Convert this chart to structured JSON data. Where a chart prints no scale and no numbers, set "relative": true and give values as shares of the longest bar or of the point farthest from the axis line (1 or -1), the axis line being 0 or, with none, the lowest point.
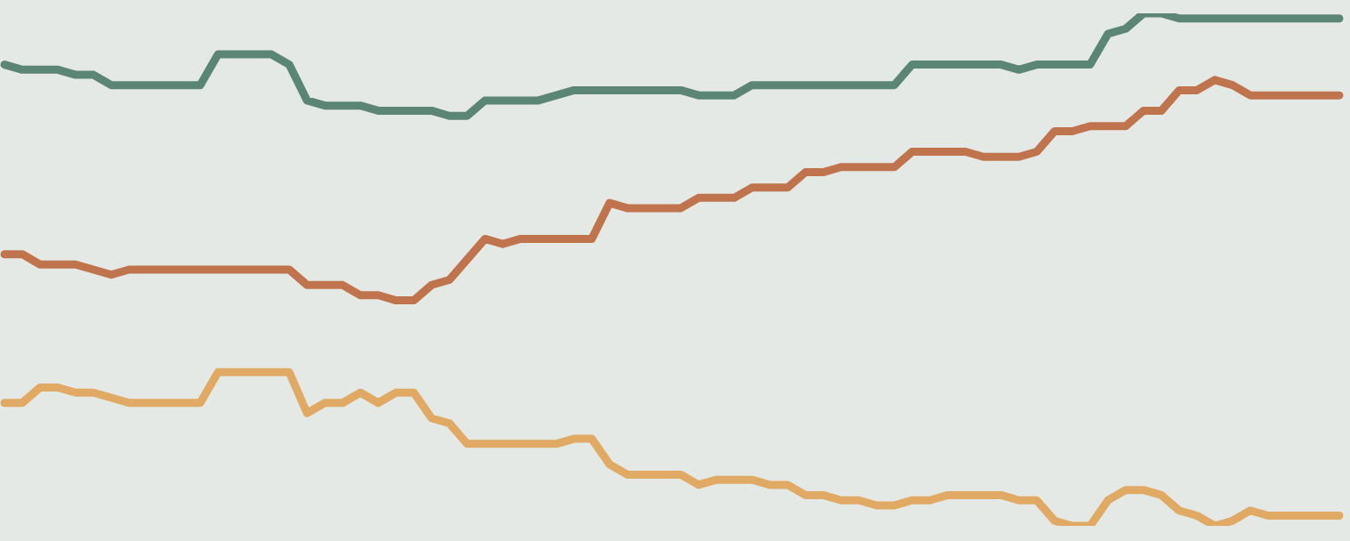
{
  "chart_data": {
    "type": "line",
    "relative": true,
    "categories": [
      null,
      null,
      null,
      null,
      null,
      null,
      null,
      null,
      null,
      null,
      null,
      null,
      null,
      null,
      null,
      null,
      null,
      null,
      null,
      null,
      null,
      null,
      null,
      null,
      null,
      null,
      null,
      null,
      null,
      null,
      null,
      null,
      null,
      null,
      null,
      null,
      null,
      null,
      null,
      null,
      null,
      null,
      null,
      null,
      null,
      null,
      null,
      null,
      null,
      null,
      null,
      null,
      null,
      null,
      null,
      null,
      null,
      null,
      null,
      null,
      null,
      null,
      null,
      null,
      null,
      null,
      null,
      null,
      null,
      null,
      null,
      null,
      null,
      null,
      null,
      null
    ],
    "series": [
      {
        "color": "#5b8575",
        "values": [
          0.9,
          0.89,
          0.89,
          0.89,
          0.88,
          0.88,
          0.86,
          0.86,
          0.86,
          0.86,
          0.86,
          0.86,
          0.92,
          0.92,
          0.92,
          0.92,
          0.9,
          0.83,
          0.82,
          0.82,
          0.82,
          0.81,
          0.81,
          0.81,
          0.81,
          0.8,
          0.8,
          0.83,
          0.83,
          0.83,
          0.83,
          0.84,
          0.85,
          0.85,
          0.85,
          0.85,
          0.85,
          0.85,
          0.85,
          0.84,
          0.84,
          0.84,
          0.86,
          0.86,
          0.86,
          0.86,
          0.86,
          0.86,
          0.86,
          0.86,
          0.86,
          0.9,
          0.9,
          0.9,
          0.9,
          0.9,
          0.9,
          0.89,
          0.9,
          0.9,
          0.9,
          0.9,
          0.96,
          0.97,
          1.0,
          1.0,
          0.99,
          0.99,
          0.99,
          0.99,
          0.99,
          0.99,
          0.99,
          0.99,
          0.99,
          0.99
        ]
      },
      {
        "color": "#c0744e",
        "values": [
          0.53,
          0.53,
          0.51,
          0.51,
          0.51,
          0.5,
          0.49,
          0.5,
          0.5,
          0.5,
          0.5,
          0.5,
          0.5,
          0.5,
          0.5,
          0.5,
          0.5,
          0.47,
          0.47,
          0.47,
          0.45,
          0.45,
          0.44,
          0.44,
          0.47,
          0.48,
          0.52,
          0.56,
          0.55,
          0.56,
          0.56,
          0.56,
          0.56,
          0.56,
          0.63,
          0.62,
          0.62,
          0.62,
          0.62,
          0.64,
          0.64,
          0.64,
          0.66,
          0.66,
          0.66,
          0.69,
          0.69,
          0.7,
          0.7,
          0.7,
          0.7,
          0.73,
          0.73,
          0.73,
          0.73,
          0.72,
          0.72,
          0.72,
          0.73,
          0.77,
          0.77,
          0.78,
          0.78,
          0.78,
          0.81,
          0.81,
          0.85,
          0.85,
          0.87,
          0.86,
          0.84,
          0.84,
          0.84,
          0.84,
          0.84,
          0.84
        ]
      },
      {
        "color": "#e0a964",
        "values": [
          0.24,
          0.24,
          0.27,
          0.27,
          0.26,
          0.26,
          0.25,
          0.24,
          0.24,
          0.24,
          0.24,
          0.24,
          0.3,
          0.3,
          0.3,
          0.3,
          0.3,
          0.22,
          0.24,
          0.24,
          0.26,
          0.24,
          0.26,
          0.26,
          0.21,
          0.2,
          0.16,
          0.16,
          0.16,
          0.16,
          0.16,
          0.16,
          0.17,
          0.17,
          0.12,
          0.1,
          0.1,
          0.1,
          0.1,
          0.08,
          0.09,
          0.09,
          0.09,
          0.08,
          0.08,
          0.06,
          0.06,
          0.05,
          0.05,
          0.04,
          0.04,
          0.05,
          0.05,
          0.06,
          0.06,
          0.06,
          0.06,
          0.05,
          0.05,
          0.01,
          0.0,
          0.0,
          0.05,
          0.07,
          0.07,
          0.06,
          0.03,
          0.02,
          0.0,
          0.01,
          0.03,
          0.02,
          0.02,
          0.02,
          0.02,
          0.02
        ]
      }
    ]
  }
}
